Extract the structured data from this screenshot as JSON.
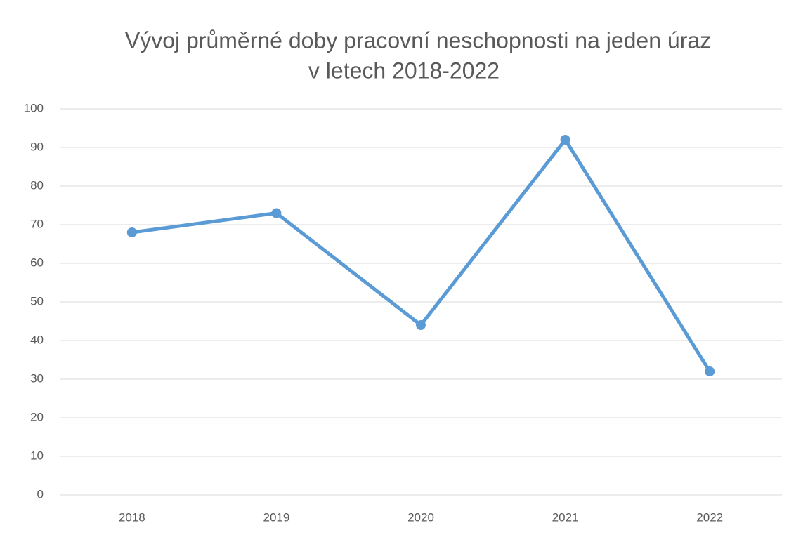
{
  "chart_data": {
    "type": "line",
    "title": [
      "Vývoj průměrné doby pracovní neschopnosti na jeden úraz",
      "v letech 2018-2022"
    ],
    "categories": [
      "2018",
      "2019",
      "2020",
      "2021",
      "2022"
    ],
    "series": [
      {
        "color": "#5b9bd5",
        "values": [
          68,
          73,
          44,
          92,
          32
        ]
      }
    ],
    "ylim": [
      0,
      100
    ],
    "yticks": [
      0,
      10,
      20,
      30,
      40,
      50,
      60,
      70,
      80,
      90,
      100
    ],
    "grid": true
  }
}
